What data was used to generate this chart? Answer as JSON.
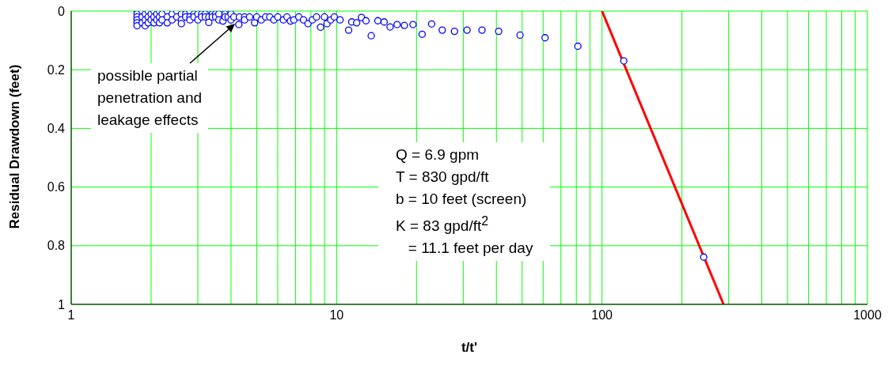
{
  "chart_data": {
    "type": "scatter",
    "xlabel": "t/t'",
    "ylabel": "Residual Drawdown (feet)",
    "log": "x",
    "grid": true,
    "xlim": [
      1,
      1000
    ],
    "xticks": [
      1,
      {
        "value": 2,
        "label": null
      },
      {
        "value": 3,
        "label": null
      },
      {
        "value": 4,
        "label": null
      },
      {
        "value": 5,
        "label": null
      },
      {
        "value": 6,
        "label": null
      },
      {
        "value": 7,
        "label": null
      },
      {
        "value": 8,
        "label": null
      },
      {
        "value": 9,
        "label": null
      },
      10,
      {
        "value": 20,
        "label": null
      },
      {
        "value": 30,
        "label": null
      },
      {
        "value": 40,
        "label": null
      },
      {
        "value": 50,
        "label": null
      },
      {
        "value": 60,
        "label": null
      },
      {
        "value": 70,
        "label": null
      },
      {
        "value": 80,
        "label": null
      },
      {
        "value": 90,
        "label": null
      },
      100,
      {
        "value": 200,
        "label": null
      },
      {
        "value": 300,
        "label": null
      },
      {
        "value": 400,
        "label": null
      },
      {
        "value": 500,
        "label": null
      },
      {
        "value": 600,
        "label": null
      },
      {
        "value": 700,
        "label": null
      },
      {
        "value": 800,
        "label": null
      },
      {
        "value": 900,
        "label": null
      },
      1000
    ],
    "ylim": [
      1,
      0
    ],
    "yticks": [
      0,
      0.2,
      0.4,
      0.6,
      0.8,
      1
    ],
    "series": [
      {
        "marker": "circle",
        "color": "#0000ff",
        "x": [
          1.77,
          1.77,
          1.77,
          1.77,
          1.77,
          1.77,
          1.85,
          1.85,
          1.85,
          1.9,
          1.9,
          1.9,
          1.95,
          1.95,
          1.95,
          2.0,
          2.0,
          2.05,
          2.05,
          2.05,
          2.1,
          2.1,
          2.15,
          2.15,
          2.15,
          2.2,
          2.2,
          2.3,
          2.3,
          2.3,
          2.4,
          2.4,
          2.5,
          2.5,
          2.6,
          2.6,
          2.6,
          2.7,
          2.7,
          2.8,
          2.8,
          2.8,
          2.9,
          2.9,
          3.0,
          3.0,
          3.1,
          3.1,
          3.2,
          3.2,
          3.3,
          3.3,
          3.4,
          3.4,
          3.5,
          3.5,
          3.6,
          3.6,
          3.73,
          3.8,
          3.8,
          3.9,
          4.0,
          4.0,
          4.1,
          4.28,
          4.3,
          4.5,
          4.5,
          4.7,
          4.91,
          5.0,
          5.2,
          5.4,
          5.6,
          5.8,
          6.0,
          6.3,
          6.5,
          6.7,
          6.9,
          7.2,
          7.5,
          7.8,
          8.1,
          8.4,
          8.7,
          9.0,
          9.2,
          9.5,
          9.8,
          10.3,
          11.1,
          11.4,
          11.9,
          12.4,
          12.9,
          13.5,
          14.3,
          15.1,
          15.9,
          16.9,
          18.0,
          19.4,
          21.0,
          22.8,
          25.0,
          27.8,
          31.0,
          35.3,
          40.8,
          49.1,
          61.0,
          81.1,
          120.8,
          241.6
        ],
        "values": [
          0.0,
          0.01,
          0.02,
          0.03,
          0.04,
          0.05,
          0.0,
          0.02,
          0.04,
          0.01,
          0.03,
          0.05,
          0.0,
          0.02,
          0.04,
          0.01,
          0.03,
          0.0,
          0.02,
          0.04,
          0.01,
          0.03,
          0.0,
          0.02,
          0.04,
          0.01,
          0.03,
          0.0,
          0.02,
          0.04,
          0.01,
          0.03,
          0.0,
          0.02,
          0.01,
          0.03,
          0.043,
          0.01,
          0.02,
          0.0,
          0.02,
          0.03,
          0.01,
          0.02,
          0.01,
          0.03,
          0.01,
          0.02,
          0.01,
          0.02,
          0.02,
          0.039,
          0.01,
          0.02,
          0.01,
          0.02,
          0.01,
          0.03,
          0.034,
          0.01,
          0.02,
          0.02,
          0.01,
          0.03,
          0.02,
          0.046,
          0.02,
          0.02,
          0.03,
          0.02,
          0.04,
          0.02,
          0.03,
          0.02,
          0.02,
          0.03,
          0.02,
          0.03,
          0.02,
          0.034,
          0.03,
          0.02,
          0.03,
          0.043,
          0.03,
          0.02,
          0.055,
          0.02,
          0.043,
          0.03,
          0.02,
          0.03,
          0.065,
          0.037,
          0.04,
          0.022,
          0.033,
          0.084,
          0.033,
          0.037,
          0.054,
          0.046,
          0.049,
          0.046,
          0.079,
          0.044,
          0.065,
          0.069,
          0.065,
          0.065,
          0.069,
          0.082,
          0.091,
          0.12,
          0.17,
          0.839
        ]
      },
      {
        "type": "line",
        "color": "#ff0000",
        "x": [
          100,
          287
        ],
        "values": [
          0,
          1
        ]
      }
    ],
    "annotations": [
      "possible partial\npenetration and\nleakage effects",
      "Q = 6.9 gpm\nT = 830 gpd/ft\nb = 10 feet (screen)\nK = 83 gpd/ft$^{2}$\n   = 11.1 feet per day"
    ]
  }
}
